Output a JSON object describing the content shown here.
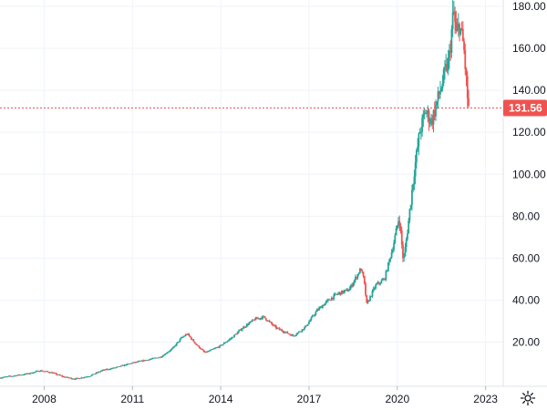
{
  "chart_data": {
    "type": "candlestick",
    "y_ticks": [
      "180.00",
      "160.00",
      "140.00",
      "120.00",
      "100.00",
      "80.00",
      "60.00",
      "40.00",
      "20.00"
    ],
    "y_tick_values": [
      180,
      160,
      140,
      120,
      100,
      80,
      60,
      40,
      20
    ],
    "x_ticks": [
      "2008",
      "2011",
      "2014",
      "2017",
      "2020",
      "2023"
    ],
    "x_tick_values": [
      2008,
      2011,
      2014,
      2017,
      2020,
      2023
    ],
    "xlim": [
      2006.5,
      2023.6
    ],
    "ylim": [
      -1,
      183
    ],
    "last_price": 131.56,
    "last_price_label": "131.56",
    "up_color": "#26a69a",
    "down_color": "#ef5350",
    "price_line_color": "#ef5350",
    "grid": true,
    "price_path": [
      [
        2006.5,
        3
      ],
      [
        2007.0,
        4
      ],
      [
        2007.5,
        5
      ],
      [
        2007.9,
        6.5
      ],
      [
        2008.3,
        5.5
      ],
      [
        2008.7,
        3.5
      ],
      [
        2009.1,
        2.5
      ],
      [
        2009.6,
        4
      ],
      [
        2010.0,
        6.5
      ],
      [
        2010.5,
        8
      ],
      [
        2011.0,
        10
      ],
      [
        2011.5,
        11.5
      ],
      [
        2012.0,
        13
      ],
      [
        2012.4,
        17
      ],
      [
        2012.7,
        22
      ],
      [
        2012.9,
        24
      ],
      [
        2013.2,
        19
      ],
      [
        2013.5,
        15
      ],
      [
        2014.0,
        18
      ],
      [
        2014.4,
        22
      ],
      [
        2014.8,
        27
      ],
      [
        2015.2,
        31
      ],
      [
        2015.5,
        32
      ],
      [
        2015.9,
        27
      ],
      [
        2016.2,
        25
      ],
      [
        2016.5,
        23
      ],
      [
        2016.9,
        27
      ],
      [
        2017.3,
        35
      ],
      [
        2017.7,
        40
      ],
      [
        2018.0,
        43
      ],
      [
        2018.4,
        45
      ],
      [
        2018.8,
        55
      ],
      [
        2018.9,
        50
      ],
      [
        2019.0,
        38
      ],
      [
        2019.3,
        47
      ],
      [
        2019.6,
        50
      ],
      [
        2019.9,
        66
      ],
      [
        2020.1,
        80
      ],
      [
        2020.25,
        58
      ],
      [
        2020.4,
        75
      ],
      [
        2020.6,
        100
      ],
      [
        2020.8,
        120
      ],
      [
        2021.0,
        130
      ],
      [
        2021.2,
        125
      ],
      [
        2021.4,
        135
      ],
      [
        2021.6,
        145
      ],
      [
        2021.8,
        155
      ],
      [
        2021.95,
        178
      ],
      [
        2022.05,
        165
      ],
      [
        2022.15,
        172
      ],
      [
        2022.3,
        160
      ],
      [
        2022.45,
        131.56
      ]
    ]
  },
  "icons": {
    "settings": "gear-icon"
  }
}
